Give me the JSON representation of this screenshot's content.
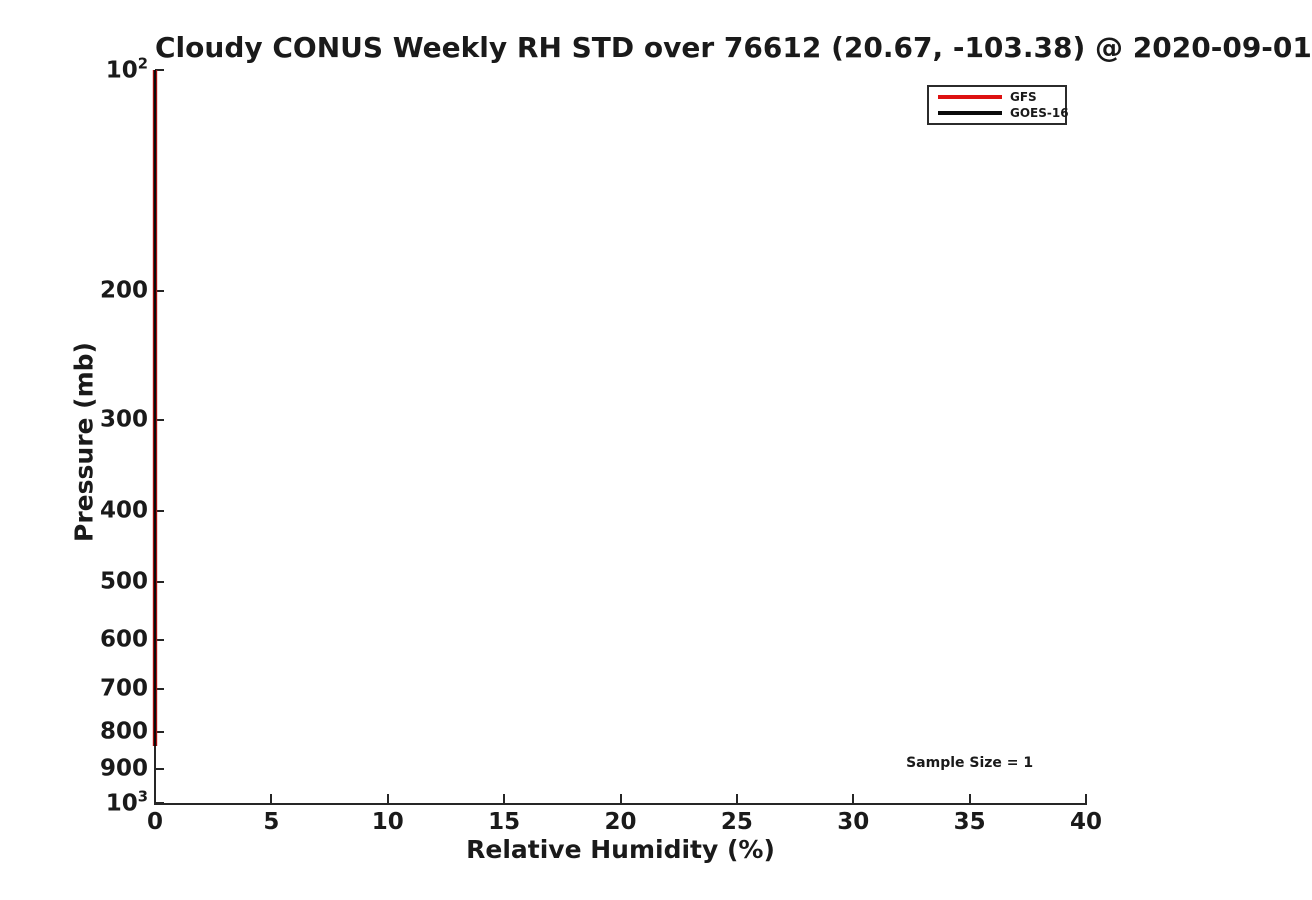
{
  "figure": {
    "background": "#ffffff",
    "text_color": "#1a1a1a",
    "axis_color": "#262626"
  },
  "chart_data": {
    "type": "line",
    "title": "Cloudy CONUS Weekly RH STD over 76612 (20.67, -103.38) @ 2020-09-01",
    "xlabel": "Relative Humidity (%)",
    "ylabel": "Pressure (mb)",
    "xlim": [
      0,
      40
    ],
    "xticks": [
      0,
      5,
      10,
      15,
      20,
      25,
      30,
      35,
      40
    ],
    "yscale": "log",
    "y_axis_inverted": true,
    "ylim_mb": [
      100,
      1000
    ],
    "yticks": [
      {
        "v": 100,
        "label": "10^2"
      },
      {
        "v": 200,
        "label": "200"
      },
      {
        "v": 300,
        "label": "300"
      },
      {
        "v": 400,
        "label": "400"
      },
      {
        "v": 500,
        "label": "500"
      },
      {
        "v": 600,
        "label": "600"
      },
      {
        "v": 700,
        "label": "700"
      },
      {
        "v": 800,
        "label": "800"
      },
      {
        "v": 900,
        "label": "900"
      },
      {
        "v": 1000,
        "label": "10^3"
      }
    ],
    "grid": false,
    "legend": {
      "position": "top-right",
      "entries": [
        {
          "label": "GFS",
          "color": "#dd1111"
        },
        {
          "label": "GOES-16",
          "color": "#0a0a0a"
        }
      ]
    },
    "series": [
      {
        "name": "GFS",
        "color": "#dd1111",
        "linewidth": 4.4,
        "points": [
          {
            "rh_std_pct": 0,
            "pressure_mb": 100
          },
          {
            "rh_std_pct": 0,
            "pressure_mb": 836
          }
        ]
      },
      {
        "name": "GOES-16",
        "color": "#0a0a0a",
        "linewidth": 2.6,
        "points": [
          {
            "rh_std_pct": 0,
            "pressure_mb": 100
          },
          {
            "rh_std_pct": 0,
            "pressure_mb": 836
          }
        ]
      }
    ],
    "annotations": [
      {
        "text": "Sample Size = 1",
        "x": 35,
        "pressure_mb": 882
      }
    ]
  }
}
